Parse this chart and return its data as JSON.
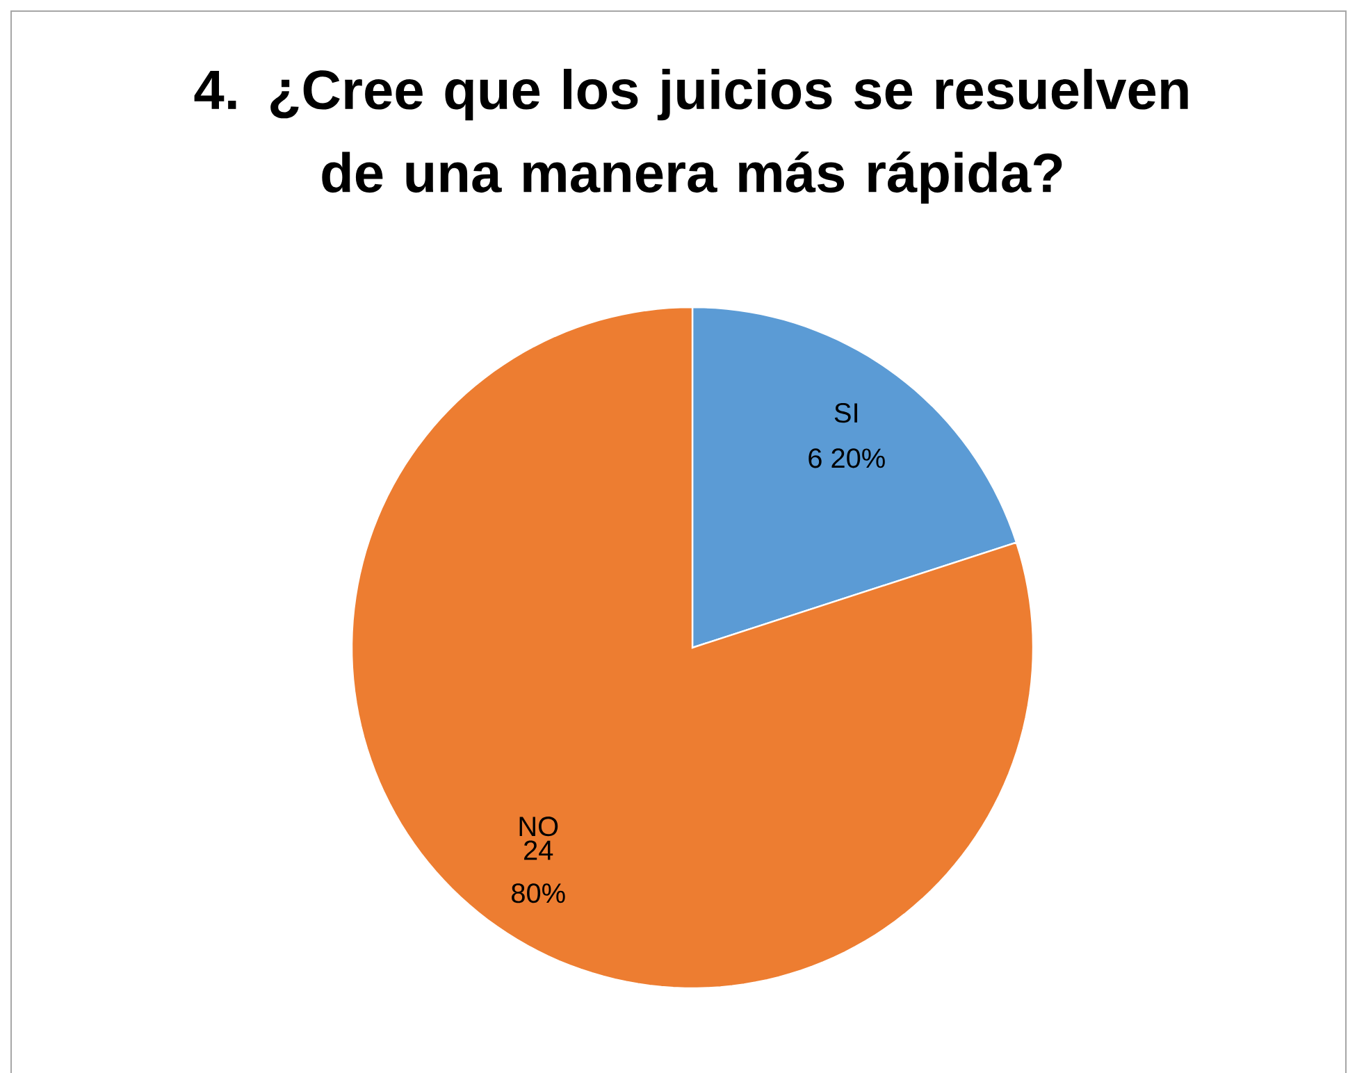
{
  "chart_data": {
    "type": "pie",
    "title": "4. ¿Cree que los juicios se resuelven de una manera más rápida?",
    "categories": [
      "SI",
      "NO"
    ],
    "values": [
      6,
      24
    ],
    "colors": [
      "#5b9bd5",
      "#ed7d31"
    ],
    "value_labels": [
      "6 20%",
      "24 80%"
    ]
  }
}
